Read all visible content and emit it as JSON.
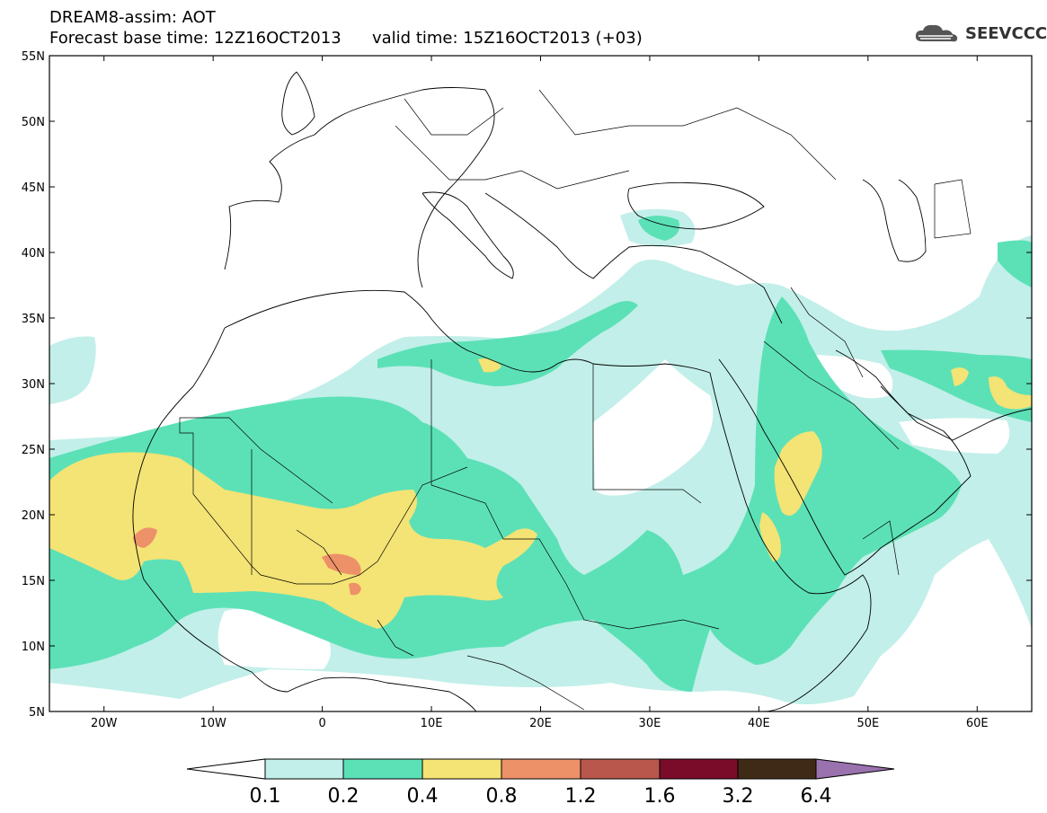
{
  "header": {
    "line1": "DREAM8-assim: AOT",
    "base_label": "Forecast base time: 12Z16OCT2013",
    "valid_label": "valid time: 15Z16OCT2013 (+03)"
  },
  "logo": {
    "text": "SEEVCCC",
    "icon": "cloud-icon"
  },
  "map": {
    "lon_range": [
      -25,
      65
    ],
    "lat_range": [
      5,
      55
    ],
    "lat_labels": [
      "55N",
      "50N",
      "45N",
      "40N",
      "35N",
      "30N",
      "25N",
      "20N",
      "15N",
      "10N",
      "5N"
    ],
    "lon_labels": [
      "20W",
      "10W",
      "0",
      "10E",
      "20E",
      "30E",
      "40E",
      "50E",
      "60E"
    ]
  },
  "colorbar": {
    "labels": [
      "0.1",
      "0.2",
      "0.4",
      "0.8",
      "1.2",
      "1.6",
      "3.2",
      "6.4"
    ],
    "colors": {
      "c01": "#c2efe9",
      "c02": "#5ce1b7",
      "c04": "#f4e375",
      "c08": "#ed9169",
      "c12": "#b9574c",
      "c16": "#7a0c29",
      "c32": "#3e2a16",
      "c64": "#9a72ae"
    }
  }
}
